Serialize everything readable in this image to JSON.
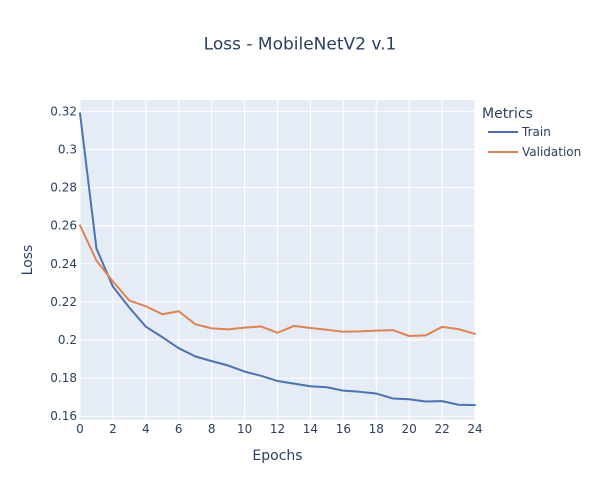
{
  "chart_data": {
    "type": "line",
    "title": "Loss - MobileNetV2 v.1",
    "xlabel": "Epochs",
    "ylabel": "Loss",
    "xlim": [
      0,
      24
    ],
    "ylim": [
      0.158,
      0.326
    ],
    "x_ticks": [
      0,
      2,
      4,
      6,
      8,
      10,
      12,
      14,
      16,
      18,
      20,
      22,
      24
    ],
    "y_ticks": [
      0.16,
      0.18,
      0.2,
      0.22,
      0.24,
      0.26,
      0.28,
      0.3,
      0.32
    ],
    "grid": true,
    "legend": {
      "title": "Metrics",
      "position": "right"
    },
    "x": [
      0,
      1,
      2,
      3,
      4,
      5,
      6,
      7,
      8,
      9,
      10,
      11,
      12,
      13,
      14,
      15,
      16,
      17,
      18,
      19,
      20,
      21,
      22,
      23,
      24
    ],
    "series": [
      {
        "name": "Train",
        "color": "#4c72b0",
        "values": [
          0.319,
          0.248,
          0.228,
          0.217,
          0.207,
          0.2015,
          0.1957,
          0.1914,
          0.1889,
          0.1866,
          0.1834,
          0.1812,
          0.1785,
          0.1771,
          0.1757,
          0.1752,
          0.1734,
          0.1728,
          0.1719,
          0.1693,
          0.1689,
          0.1677,
          0.1679,
          0.166,
          0.1658
        ]
      },
      {
        "name": "Validation",
        "color": "#dd8452",
        "values": [
          0.2602,
          0.2417,
          0.2307,
          0.2207,
          0.2177,
          0.2135,
          0.2151,
          0.2083,
          0.2061,
          0.2056,
          0.2065,
          0.2071,
          0.2038,
          0.2074,
          0.2063,
          0.2054,
          0.2043,
          0.2045,
          0.2049,
          0.2052,
          0.2021,
          0.2024,
          0.2069,
          0.2057,
          0.2032
        ]
      }
    ]
  }
}
